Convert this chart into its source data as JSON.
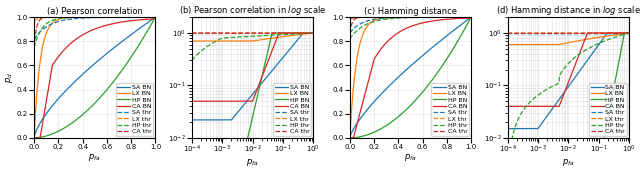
{
  "title_a": "(a) Pearson correlation",
  "title_b": "(b) Pearson correlation in $log$ scale",
  "title_c": "(c) Hamming distance",
  "title_d": "(d) Hamming distance in $log$ scale",
  "xlabel_linear": "$p_{fa}$",
  "xlabel_log": "$p_{fa}$",
  "ylabel_linear": "$p_d$",
  "ylabel_log": "$p_d$",
  "colors": {
    "SA": "#1f77b4",
    "LX": "#ff7f0e",
    "HP": "#2ca02c",
    "CA": "#d62728"
  },
  "legend_entries": [
    "SA BN",
    "LX BN",
    "HP BN",
    "CA BN",
    "SA thr",
    "LX thr",
    "HP thr",
    "CA thr"
  ],
  "figsize": [
    6.4,
    1.72
  ],
  "dpi": 100
}
